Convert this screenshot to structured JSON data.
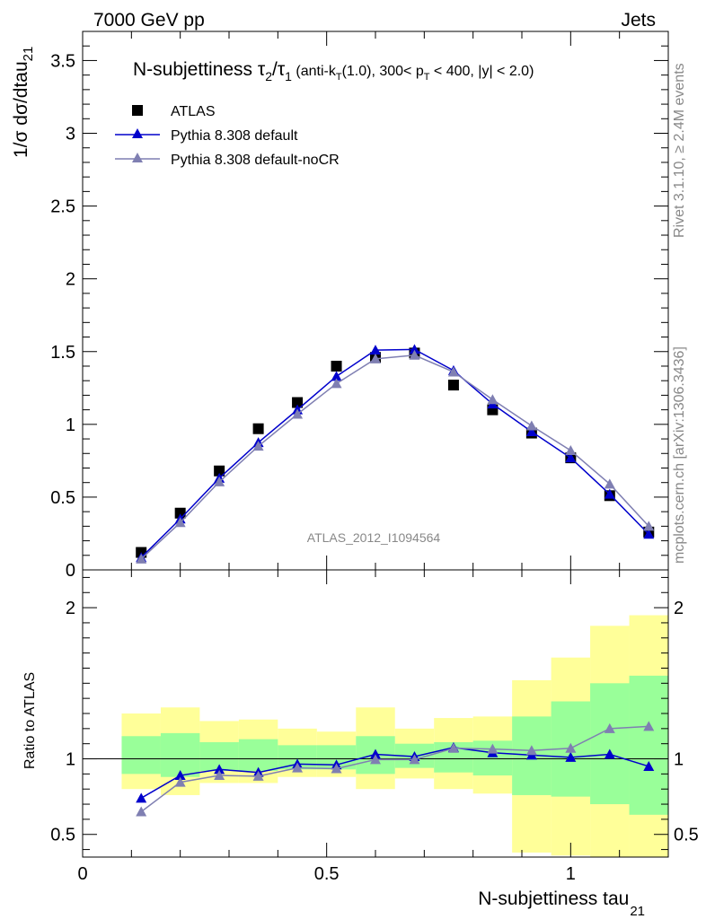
{
  "header": {
    "left": "7000 GeV pp",
    "right": "Jets"
  },
  "side_text": {
    "rivet": "Rivet 3.1.10, ≥ 2.4M events",
    "mcplots": "mcplots.cern.ch [arXiv:1306.3436]"
  },
  "title": {
    "main": "N-subjettiness τ",
    "sub1": "2",
    "slash": "/τ",
    "sub2": "1",
    "cond_a": " (anti-k",
    "cond_sub_t": "T",
    "cond_b": "(1.0), 300< p",
    "cond_sub_t2": "T",
    "cond_c": " < 400, |y| < 2.0)"
  },
  "analysis_label": "ATLAS_2012_I1094564",
  "axes": {
    "y_main": {
      "label": "1/σ dσ/dtau",
      "label_sub": "21"
    },
    "y_ratio": {
      "label": "Ratio to ATLAS"
    },
    "x": {
      "label": "N-subjettiness tau",
      "label_sub": "21"
    }
  },
  "legend": [
    {
      "label": "ATLAS",
      "color": "#000000",
      "marker": "square"
    },
    {
      "label": "Pythia 8.308 default",
      "color": "#0000cc",
      "marker": "triangle"
    },
    {
      "label": "Pythia 8.308 default-noCR",
      "color": "#7f7fb2",
      "marker": "triangle"
    }
  ],
  "chart_data": {
    "type": "line",
    "x_range": [
      0,
      1.2
    ],
    "x_ticks": [
      "0",
      "0.5",
      "1"
    ],
    "main": {
      "y_range": [
        0,
        3.7
      ],
      "y_ticks": [
        "0",
        "0.5",
        "1",
        "1.5",
        "2",
        "2.5",
        "3",
        "3.5"
      ],
      "x": [
        0.12,
        0.2,
        0.28,
        0.36,
        0.44,
        0.52,
        0.6,
        0.68,
        0.76,
        0.84,
        0.92,
        1.0,
        1.08,
        1.16
      ],
      "series": [
        {
          "name": "ATLAS",
          "color": "#000000",
          "values": [
            0.12,
            0.39,
            0.68,
            0.97,
            1.15,
            1.4,
            1.46,
            1.49,
            1.27,
            1.1,
            0.94,
            0.77,
            0.51,
            0.26
          ]
        },
        {
          "name": "Pythia 8.308 default",
          "color": "#0000cc",
          "values": [
            0.085,
            0.35,
            0.63,
            0.875,
            1.1,
            1.33,
            1.51,
            1.515,
            1.37,
            1.14,
            0.95,
            0.77,
            0.52,
            0.245
          ]
        },
        {
          "name": "Pythia 8.308 default-noCR",
          "color": "#7f7fb2",
          "values": [
            0.075,
            0.325,
            0.605,
            0.85,
            1.07,
            1.28,
            1.45,
            1.475,
            1.36,
            1.17,
            0.99,
            0.82,
            0.59,
            0.3
          ]
        }
      ]
    },
    "ratio": {
      "y_range": [
        0.35,
        2.25
      ],
      "y_ticks": [
        "0.5",
        "1",
        "2"
      ],
      "reference": 1,
      "bins": [
        {
          "lo": 0.08,
          "hi": 0.16,
          "stat": [
            0.9,
            1.15
          ],
          "total": [
            0.8,
            1.3
          ]
        },
        {
          "lo": 0.16,
          "hi": 0.24,
          "stat": [
            0.88,
            1.17
          ],
          "total": [
            0.76,
            1.34
          ]
        },
        {
          "lo": 0.24,
          "hi": 0.32,
          "stat": [
            0.92,
            1.11
          ],
          "total": [
            0.84,
            1.25
          ]
        },
        {
          "lo": 0.32,
          "hi": 0.4,
          "stat": [
            0.92,
            1.13
          ],
          "total": [
            0.84,
            1.26
          ]
        },
        {
          "lo": 0.4,
          "hi": 0.48,
          "stat": [
            0.93,
            1.09
          ],
          "total": [
            0.88,
            1.2
          ]
        },
        {
          "lo": 0.48,
          "hi": 0.56,
          "stat": [
            0.93,
            1.09
          ],
          "total": [
            0.88,
            1.18
          ]
        },
        {
          "lo": 0.56,
          "hi": 0.64,
          "stat": [
            0.9,
            1.15
          ],
          "total": [
            0.8,
            1.34
          ]
        },
        {
          "lo": 0.64,
          "hi": 0.72,
          "stat": [
            0.94,
            1.1
          ],
          "total": [
            0.87,
            1.2
          ]
        },
        {
          "lo": 0.72,
          "hi": 0.8,
          "stat": [
            0.91,
            1.11
          ],
          "total": [
            0.8,
            1.27
          ]
        },
        {
          "lo": 0.8,
          "hi": 0.88,
          "stat": [
            0.89,
            1.12
          ],
          "total": [
            0.77,
            1.28
          ]
        },
        {
          "lo": 0.88,
          "hi": 0.96,
          "stat": [
            0.76,
            1.28
          ],
          "total": [
            0.38,
            1.52
          ]
        },
        {
          "lo": 0.96,
          "hi": 1.04,
          "stat": [
            0.75,
            1.38
          ],
          "total": [
            0.36,
            1.67
          ]
        },
        {
          "lo": 1.04,
          "hi": 1.12,
          "stat": [
            0.7,
            1.5
          ],
          "total": [
            0.35,
            1.88
          ]
        },
        {
          "lo": 1.12,
          "hi": 1.2,
          "stat": [
            0.63,
            1.55
          ],
          "total": [
            0.35,
            1.95
          ]
        }
      ],
      "series": [
        {
          "name": "Pythia 8.308 default",
          "color": "#0000cc",
          "values": [
            0.74,
            0.89,
            0.93,
            0.91,
            0.965,
            0.96,
            1.03,
            1.015,
            1.075,
            1.04,
            1.025,
            1.01,
            1.03,
            0.95
          ]
        },
        {
          "name": "Pythia 8.308 default-noCR",
          "color": "#7f7fb2",
          "values": [
            0.65,
            0.845,
            0.89,
            0.885,
            0.94,
            0.935,
            0.995,
            0.995,
            1.07,
            1.065,
            1.055,
            1.07,
            1.2,
            1.215
          ]
        }
      ]
    }
  }
}
